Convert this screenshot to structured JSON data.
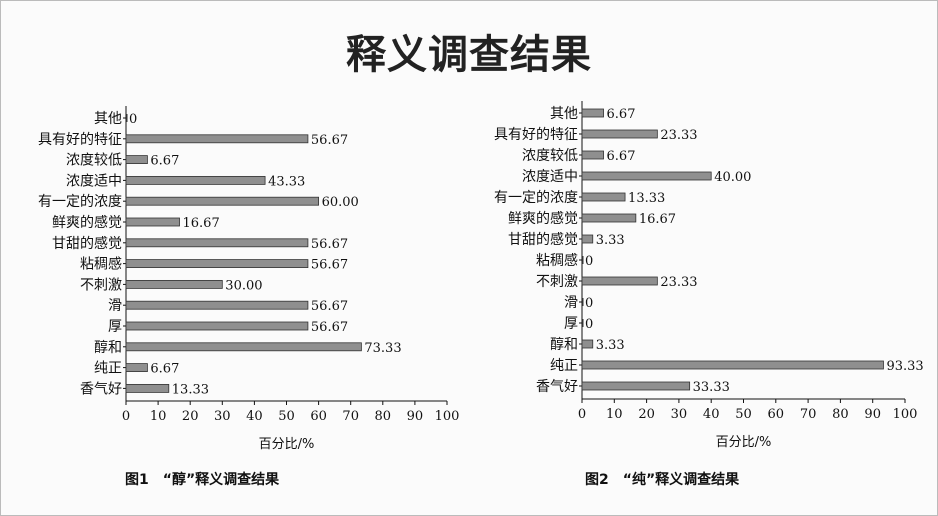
{
  "page": {
    "title": "释义调查结果"
  },
  "chart_data": [
    {
      "type": "bar",
      "orientation": "horizontal",
      "caption": "图1　“醇”释义调查结果",
      "xlabel": "百分比/%",
      "xlim": [
        0,
        100
      ],
      "ticks": [
        0,
        10,
        20,
        30,
        40,
        50,
        60,
        70,
        80,
        90,
        100
      ],
      "categories": [
        "其他",
        "具有好的特征",
        "浓度较低",
        "浓度适中",
        "有一定的浓度",
        "鲜爽的感觉",
        "甘甜的感觉",
        "粘稠感",
        "不刺激",
        "滑",
        "厚",
        "醇和",
        "纯正",
        "香气好"
      ],
      "values": [
        0,
        56.67,
        6.67,
        43.33,
        60.0,
        16.67,
        56.67,
        56.67,
        30.0,
        56.67,
        56.67,
        73.33,
        6.67,
        13.33
      ],
      "value_labels": [
        "0",
        "56.67",
        "6.67",
        "43.33",
        "60.00",
        "16.67",
        "56.67",
        "56.67",
        "30.00",
        "56.67",
        "56.67",
        "73.33",
        "6.67",
        "13.33"
      ],
      "bar_color": "#8f8f8f"
    },
    {
      "type": "bar",
      "orientation": "horizontal",
      "caption": "图2　“纯”释义调查结果",
      "xlabel": "百分比/%",
      "xlim": [
        0,
        100
      ],
      "ticks": [
        0,
        10,
        20,
        30,
        40,
        50,
        60,
        70,
        80,
        90,
        100
      ],
      "categories": [
        "其他",
        "具有好的特征",
        "浓度较低",
        "浓度适中",
        "有一定的浓度",
        "鲜爽的感觉",
        "甘甜的感觉",
        "粘稠感",
        "不刺激",
        "滑",
        "厚",
        "醇和",
        "纯正",
        "香气好"
      ],
      "values": [
        6.67,
        23.33,
        6.67,
        40.0,
        13.33,
        16.67,
        3.33,
        0,
        23.33,
        0,
        0,
        3.33,
        93.33,
        33.33
      ],
      "value_labels": [
        "6.67",
        "23.33",
        "6.67",
        "40.00",
        "13.33",
        "16.67",
        "3.33",
        "0",
        "23.33",
        "0",
        "0",
        "3.33",
        "93.33",
        "33.33"
      ],
      "bar_color": "#8f8f8f"
    }
  ]
}
